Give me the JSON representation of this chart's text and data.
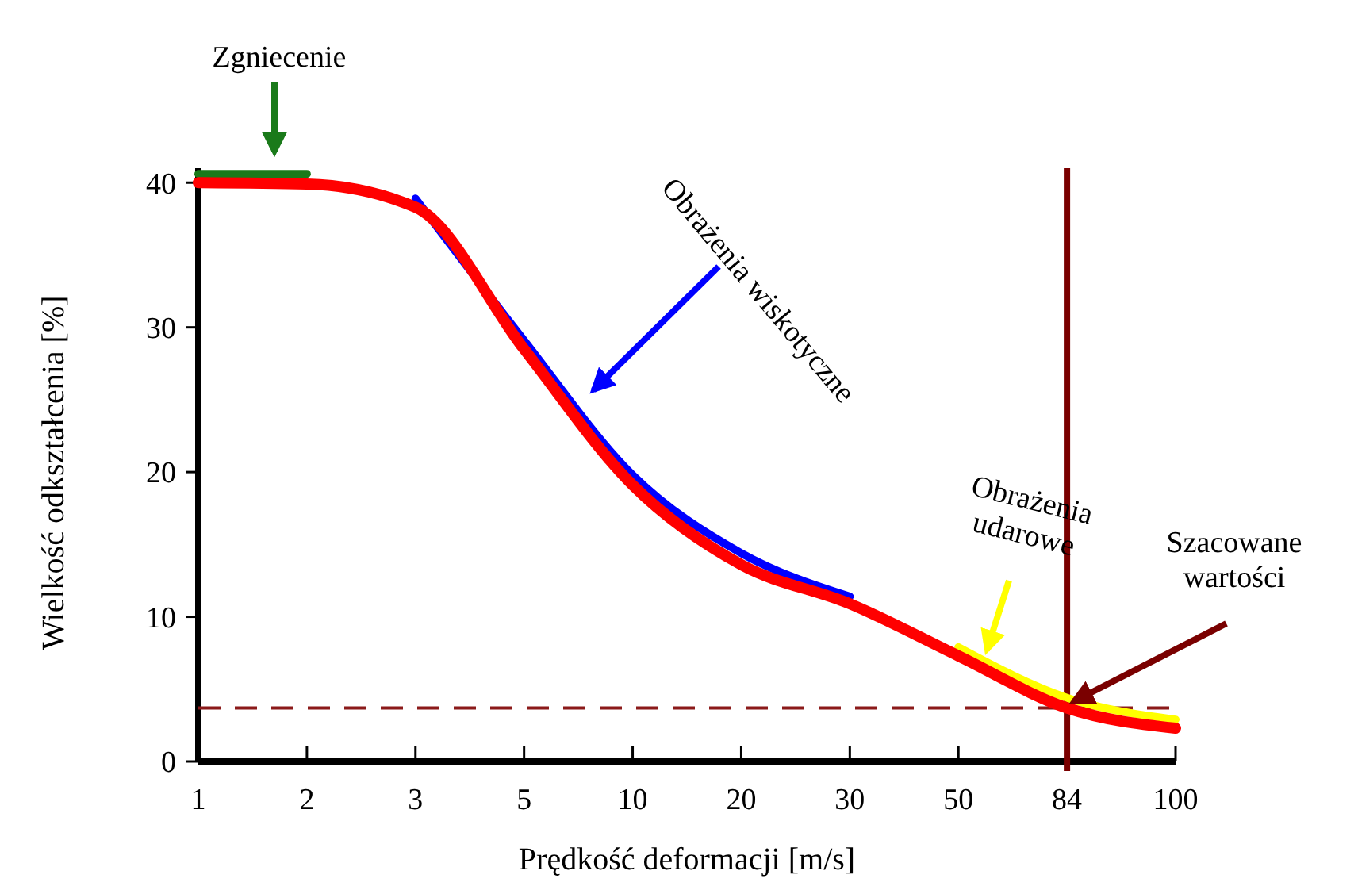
{
  "chart_data": {
    "type": "line",
    "xlabel": "Prędkość deformacji [m/s]",
    "ylabel": "Wielkość odkształcenia [%]",
    "categories": [
      "1",
      "2",
      "3",
      "5",
      "10",
      "20",
      "30",
      "50",
      "84",
      "100"
    ],
    "ylim": [
      0,
      41
    ],
    "yticks": [
      0,
      10,
      20,
      30,
      40
    ],
    "marker": "none",
    "line_style": "solid",
    "series": [
      {
        "color": "#ff0000",
        "values": [
          40,
          39.9,
          38.3,
          28.5,
          19.1,
          13.6,
          10.9,
          7.3,
          3.7,
          2.3
        ]
      },
      {
        "color": "#1a7a1a",
        "values": [
          40.6,
          40.6,
          null,
          null,
          null,
          null,
          null,
          null,
          null,
          null
        ]
      },
      {
        "color": "#0000ff",
        "values": [
          null,
          null,
          38.9,
          29.1,
          19.8,
          14.4,
          11.4,
          null,
          null,
          null
        ]
      },
      {
        "color": "#ffff00",
        "values": [
          null,
          null,
          null,
          null,
          null,
          null,
          null,
          7.9,
          4.4,
          2.9
        ]
      }
    ],
    "ref_lines": [
      {
        "axis": "y",
        "value": 3.7,
        "color": "#8b1a1a",
        "line_style": "dashed"
      },
      {
        "axis": "x",
        "value": "84",
        "color": "#7a0000",
        "line_style": "solid"
      }
    ],
    "annotations": [
      "Zgniecenie",
      "Obrażenia wiskotyczne",
      "Obrażenia\nudarowe",
      {
        "text": "Szacowane\nwartości",
        "x": "84",
        "y": 3.7
      }
    ]
  }
}
